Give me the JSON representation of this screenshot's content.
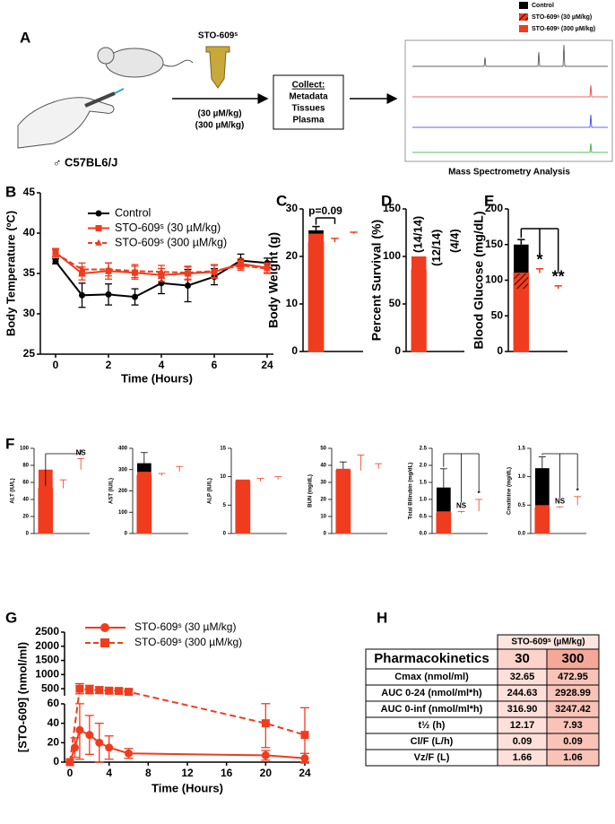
{
  "legend": {
    "entries": [
      {
        "name": "Control",
        "color": "#000000",
        "hatch": false
      },
      {
        "name": "STO-609ˢ (30 µM/kg)",
        "color": "#f03c1e",
        "hatch": true
      },
      {
        "name": "STO-609ˢ (300 µM/kg)",
        "color": "#f03c1e",
        "hatch": false
      }
    ]
  },
  "panel_labels": [
    "A",
    "B",
    "C",
    "D",
    "E",
    "F",
    "G",
    "H"
  ],
  "panel_a": {
    "compound": "STO-609ˢ",
    "doses": [
      "(30 µM/kg)",
      "(300 µM/kg)"
    ],
    "strain": "♂ C57BL6/J",
    "collect": {
      "title": "Collect:",
      "items": [
        "Metadata",
        "Tissues",
        "Plasma"
      ]
    },
    "analysis": "Mass Spectrometry Analysis"
  },
  "chart_data": [
    {
      "type": "line",
      "xlabel": "Time (Hours)",
      "ylabel": "Body Temperature (ºC)",
      "categories": [
        "0",
        null,
        "2",
        null,
        "4",
        null,
        "6",
        null,
        "24"
      ],
      "ylim": [
        25,
        45
      ],
      "yticks": [
        25,
        30,
        35,
        40,
        45
      ],
      "legend": "upper-left",
      "series": [
        {
          "name": "Control",
          "color": "#000000",
          "marker": "circle",
          "linestyle": "solid",
          "values": [
            36.5,
            32.3,
            32.4,
            32.1,
            33.8,
            33.5,
            34.6,
            36.6,
            36.3
          ],
          "errors": [
            0.3,
            1.5,
            1.3,
            1.0,
            1.3,
            2.0,
            1.0,
            0.8,
            0.6
          ]
        },
        {
          "name": "STO-609ˢ (30 µM/kg)",
          "color": "#f03c1e",
          "marker": "square",
          "linestyle": "solid",
          "values": [
            37.6,
            35.0,
            35.3,
            35.1,
            34.8,
            35.0,
            35.2,
            36.2,
            35.7
          ],
          "errors": [
            0.5,
            0.8,
            1.0,
            0.8,
            0.8,
            0.8,
            0.8,
            0.6,
            0.6
          ]
        },
        {
          "name": "STO-609ˢ (300 µM/kg)",
          "color": "#f03c1e",
          "marker": "triangle",
          "linestyle": "dashed",
          "values": [
            37.5,
            35.5,
            35.5,
            35.3,
            35.2,
            35.1,
            35.3,
            36.0,
            35.6
          ],
          "errors": [
            0.5,
            0.8,
            0.8,
            0.8,
            0.8,
            0.8,
            0.8,
            0.6,
            0.6
          ]
        }
      ]
    },
    {
      "type": "bar",
      "ylabel": "Body Weight (g)",
      "categories": [
        null,
        null,
        null
      ],
      "values": [
        25.5,
        23,
        24.8
      ],
      "errors": [
        0.8,
        0.8,
        0.3
      ],
      "colors": [
        "#000000",
        "#f03c1e",
        "#f03c1e"
      ],
      "hatch": [
        false,
        true,
        false
      ],
      "ylim": [
        0,
        30
      ],
      "yticks": [
        0,
        10,
        20,
        30
      ],
      "annotations": [
        "p=0.09"
      ]
    },
    {
      "type": "bar",
      "ylabel": "Percent Survival (%)",
      "categories": [
        null,
        null,
        null
      ],
      "values": [
        100,
        86,
        100
      ],
      "errors": [
        0,
        0,
        0
      ],
      "colors": [
        "#000000",
        "#f03c1e",
        "#f03c1e"
      ],
      "hatch": [
        false,
        true,
        false
      ],
      "ylim": [
        0,
        150
      ],
      "yticks": [
        0,
        50,
        100,
        150
      ],
      "annotations": [
        "(14/14)",
        "(12/14)",
        "(4/4)"
      ]
    },
    {
      "type": "bar",
      "ylabel": "Blood Glucose (mg/dL)",
      "categories": [
        null,
        null,
        null
      ],
      "values": [
        150,
        110,
        88
      ],
      "errors": [
        7,
        6,
        4
      ],
      "colors": [
        "#000000",
        "#f03c1e",
        "#f03c1e"
      ],
      "hatch": [
        false,
        true,
        false
      ],
      "ylim": [
        0,
        200
      ],
      "yticks": [
        0,
        50,
        100,
        150,
        200
      ],
      "annotations": [
        "*",
        "**"
      ]
    },
    {
      "type": "bar",
      "ylabel": "ALT (IU/L)",
      "categories": [
        null,
        null,
        null
      ],
      "values": [
        48,
        53,
        75
      ],
      "errors": [
        6,
        10,
        13
      ],
      "colors": [
        "#000000",
        "#f03c1e",
        "#f03c1e"
      ],
      "hatch": [
        false,
        true,
        false
      ],
      "ylim": [
        0,
        100
      ],
      "yticks": [
        0,
        20,
        40,
        60,
        80,
        100
      ],
      "annotations": [
        "NS"
      ]
    },
    {
      "type": "bar",
      "ylabel": "AST (IU/L)",
      "categories": [
        null,
        null,
        null
      ],
      "values": [
        330,
        272,
        290
      ],
      "errors": [
        50,
        10,
        25
      ],
      "colors": [
        "#000000",
        "#f03c1e",
        "#f03c1e"
      ],
      "hatch": [
        false,
        true,
        false
      ],
      "ylim": [
        0,
        400
      ],
      "yticks": [
        0,
        100,
        200,
        300,
        400
      ]
    },
    {
      "type": "bar",
      "ylabel": "ALP (IU/L)",
      "categories": [
        null,
        null,
        null
      ],
      "values": [
        8.6,
        9.2,
        9.5
      ],
      "errors": [
        0.5,
        0.5,
        0.5
      ],
      "colors": [
        "#000000",
        "#f03c1e",
        "#f03c1e"
      ],
      "hatch": [
        false,
        true,
        false
      ],
      "ylim": [
        0,
        15
      ],
      "yticks": [
        0,
        5,
        10,
        15
      ]
    },
    {
      "type": "bar",
      "ylabel": "BUN (mg/dL)",
      "categories": [
        null,
        null,
        null
      ],
      "values": [
        36,
        37,
        38
      ],
      "errors": [
        6,
        9,
        3
      ],
      "colors": [
        "#000000",
        "#f03c1e",
        "#f03c1e"
      ],
      "hatch": [
        false,
        true,
        false
      ],
      "ylim": [
        0,
        50
      ],
      "yticks": [
        0,
        10,
        20,
        30,
        40,
        50
      ]
    },
    {
      "type": "bar",
      "ylabel": "Total Bilirubin (mg/dL)",
      "categories": [
        null,
        null,
        null
      ],
      "values": [
        1.35,
        0.6,
        0.65
      ],
      "errors": [
        0.55,
        0.05,
        0.35
      ],
      "colors": [
        "#000000",
        "#f03c1e",
        "#f03c1e"
      ],
      "hatch": [
        false,
        true,
        false
      ],
      "ylim": [
        0,
        2.5
      ],
      "yticks": [
        {
          "value": 0,
          "label": "0.0"
        },
        0.5,
        {
          "value": 1,
          "label": "1.0"
        },
        1.5,
        {
          "value": 2,
          "label": "2.0"
        },
        2.5
      ],
      "annotations": [
        "NS",
        "*"
      ]
    },
    {
      "type": "bar",
      "ylabel": "Creatinine (mg/dL)",
      "categories": [
        null,
        null,
        null
      ],
      "values": [
        1.15,
        0.45,
        0.5
      ],
      "errors": [
        0.2,
        0.02,
        0.15
      ],
      "colors": [
        "#000000",
        "#f03c1e",
        "#f03c1e"
      ],
      "hatch": [
        false,
        true,
        false
      ],
      "ylim": [
        0,
        1.5
      ],
      "yticks": [
        {
          "value": 0,
          "label": "0.0"
        },
        0.5,
        {
          "value": 1,
          "label": "1.0"
        },
        1.5
      ],
      "annotations": [
        "NS",
        "*"
      ]
    },
    {
      "type": "scatter-line",
      "xlabel": "Time (Hours)",
      "ylabel": "[STO-609] (nmol/ml)",
      "xlim": [
        0,
        24
      ],
      "xticks": [
        0,
        4,
        8,
        12,
        16,
        20,
        24
      ],
      "ylim": [
        0,
        2500
      ],
      "ybreak": [
        60,
        250
      ],
      "yticks": [
        0,
        20,
        40,
        60,
        500,
        1000,
        1500,
        2000,
        2500
      ],
      "legend": "upper-left",
      "series": [
        {
          "name": "STO-609ˢ (30 µM/kg)",
          "color": "#f03c1e",
          "marker": "circle",
          "linestyle": "solid",
          "x": [
            0,
            0.5,
            1,
            2,
            3,
            4,
            6,
            20,
            24
          ],
          "values": [
            0,
            15,
            33,
            28,
            20,
            15,
            9,
            7,
            4
          ],
          "errors": [
            0,
            10,
            30,
            20,
            20,
            12,
            5,
            5,
            5
          ]
        },
        {
          "name": "STO-609ˢ (300 µM/kg)",
          "color": "#f03c1e",
          "marker": "square",
          "linestyle": "dashed",
          "x": [
            0,
            1,
            2,
            3,
            4,
            5,
            6,
            20,
            24
          ],
          "values": [
            0,
            500,
            470,
            450,
            430,
            420,
            390,
            40,
            28
          ],
          "errors": [
            0,
            180,
            150,
            120,
            100,
            90,
            80,
            25,
            28
          ]
        }
      ]
    }
  ],
  "table": {
    "header": "STO-609ˢ (µM/kg)",
    "columns": [
      "Pharmacokinetics",
      "30",
      "300"
    ],
    "rows": [
      [
        "Cmax (nmol/ml)",
        "32.65",
        "472.95"
      ],
      [
        "AUC 0-24 (nmol/ml*h)",
        "244.63",
        "2928.99"
      ],
      [
        "AUC 0-inf (nmol/ml*h)",
        "316.90",
        "3247.42"
      ],
      [
        "t½ (h)",
        "12.17",
        "7.93"
      ],
      [
        "Cl/F (L/h)",
        "0.09",
        "0.09"
      ],
      [
        "Vz/F (L)",
        "1.66",
        "1.06"
      ]
    ]
  }
}
